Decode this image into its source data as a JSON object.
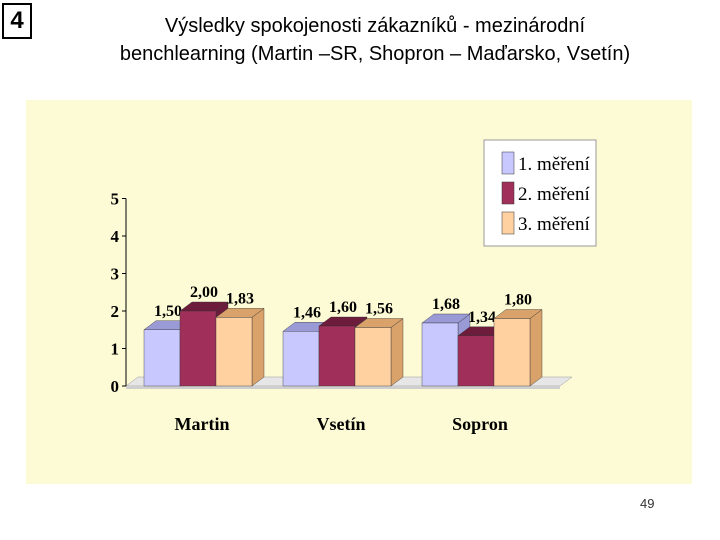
{
  "slide": {
    "number": "4",
    "title_line1": "Výsledky spokojenosti zákazníků - mezinárodní",
    "title_line2": "benchlearning (Martin –SR, Shopron – Maďarsko, Vsetín)",
    "page_number": "49"
  },
  "colors": {
    "panel_bg": "#fdfbd6",
    "series": [
      "#c8c8ff",
      "#a0305a",
      "#ffd0a0"
    ],
    "series_dark": [
      "#9a9ad6",
      "#6e1c3c",
      "#d9a26a"
    ]
  },
  "chart_data": {
    "type": "bar",
    "title": "",
    "xlabel": "",
    "ylabel": "",
    "categories": [
      "Martin",
      "Vsetín",
      "Sopron"
    ],
    "series": [
      {
        "name": "1. měření",
        "values": [
          1.5,
          1.46,
          1.68
        ],
        "labels": [
          "1,50",
          "1,46",
          "1,68"
        ]
      },
      {
        "name": "2. měření",
        "values": [
          2.0,
          1.6,
          1.34
        ],
        "labels": [
          "2,00",
          "1,60",
          "1,34"
        ]
      },
      {
        "name": "3. měření",
        "values": [
          1.83,
          1.56,
          1.8
        ],
        "labels": [
          "1,83",
          "1,56",
          "1,80"
        ]
      }
    ],
    "ylim": [
      0,
      5
    ],
    "yticks": [
      "0",
      "1",
      "2",
      "3",
      "4",
      "5"
    ],
    "grid": false,
    "legend": "top-right",
    "style": "3d-bars"
  }
}
